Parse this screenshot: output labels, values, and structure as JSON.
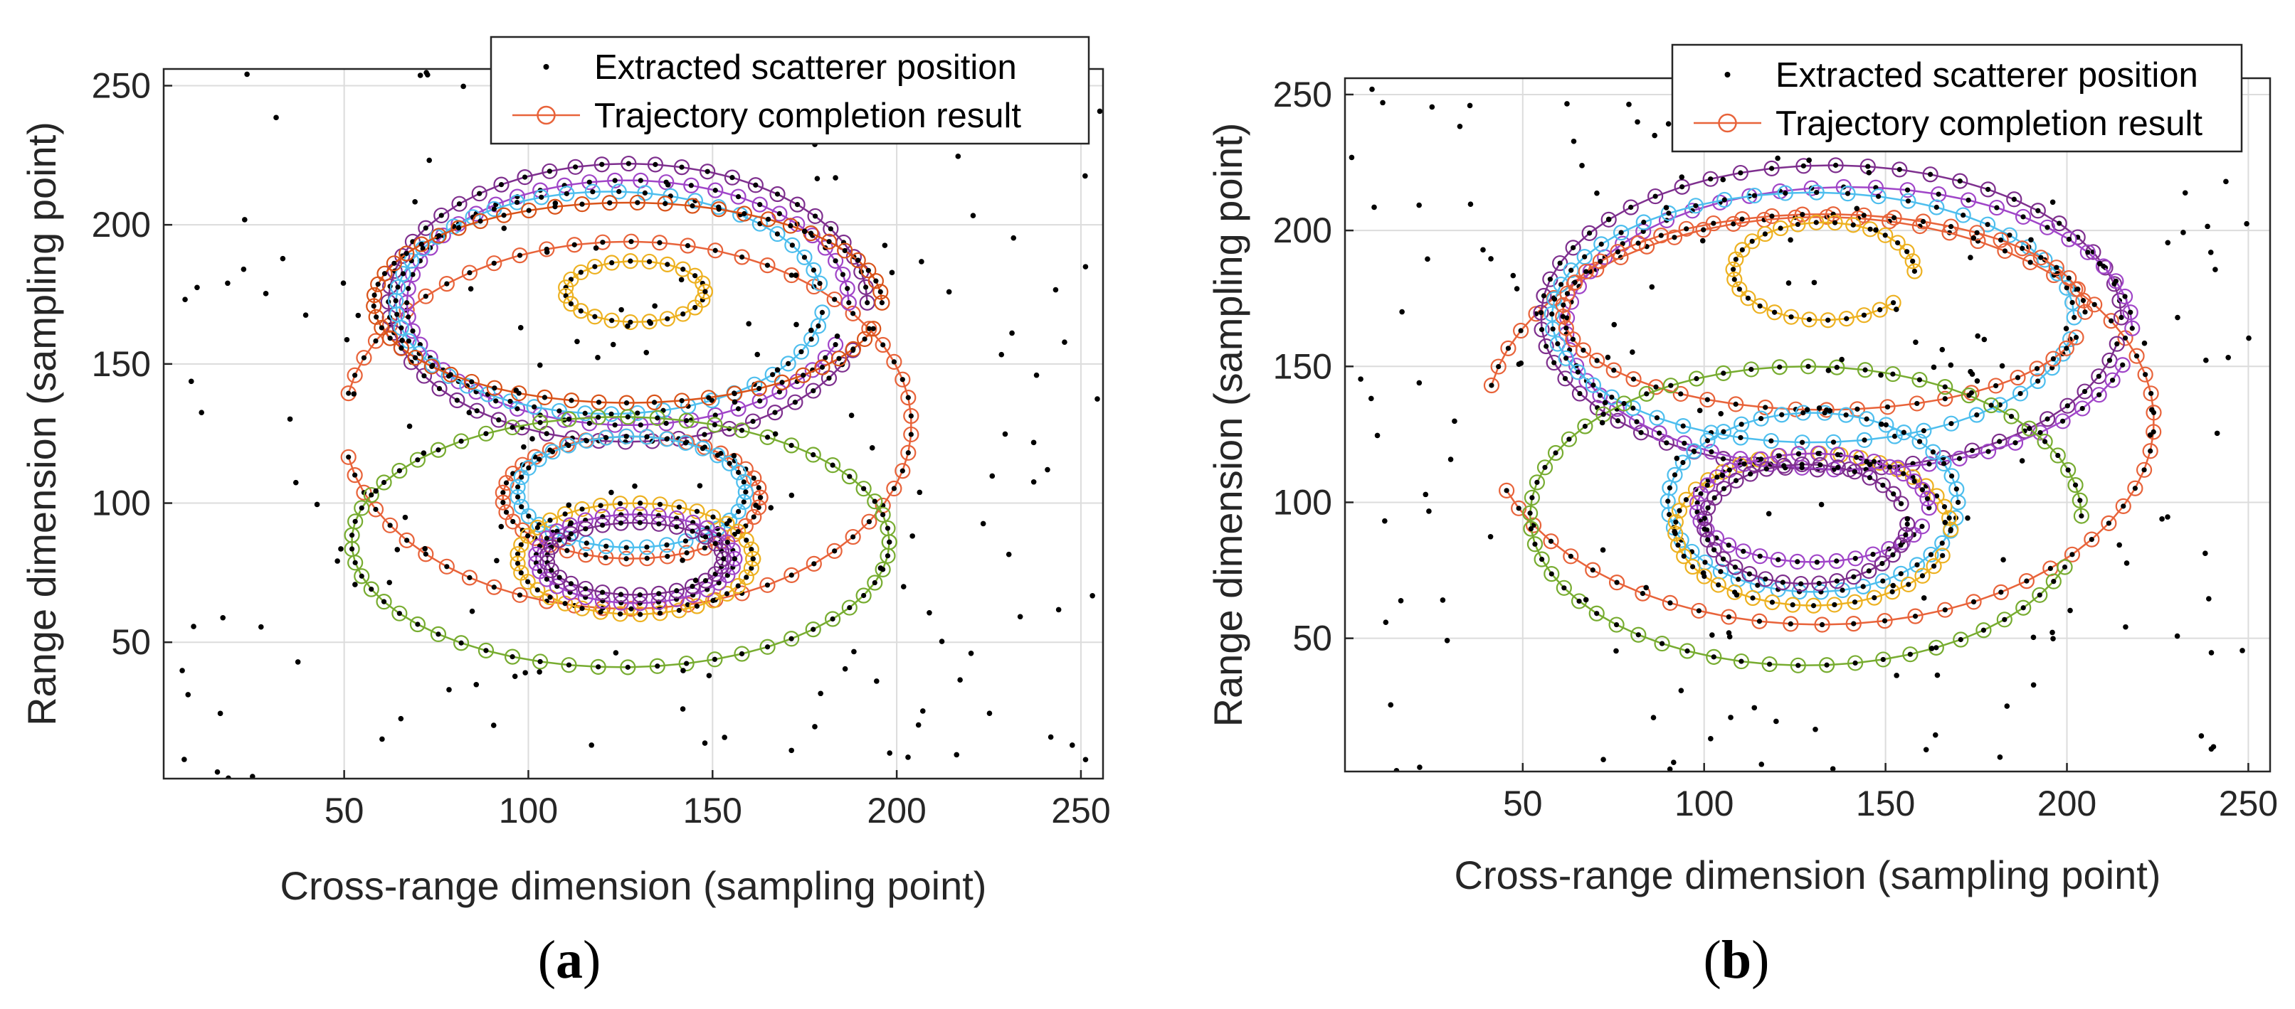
{
  "figure": {
    "panels": [
      {
        "label_open": "(",
        "label_letter": "a",
        "label_close": ")"
      },
      {
        "label_open": "(",
        "label_letter": "b",
        "label_close": ")"
      }
    ]
  },
  "chart_data": [
    {
      "type": "scatter",
      "title": "",
      "xlabel": "Cross-range dimension (sampling point)",
      "ylabel": "Range dimension (sampling point)",
      "xlim": [
        1,
        256
      ],
      "ylim": [
        1,
        256
      ],
      "xticks": [
        50,
        100,
        150,
        200,
        250
      ],
      "yticks": [
        50,
        100,
        150,
        200,
        250
      ],
      "grid": true,
      "legend": {
        "position": "top-right",
        "entries": [
          {
            "label": "Extracted scatterer position",
            "marker": "dot",
            "color": "#000000"
          },
          {
            "label": "Trajectory completion result",
            "marker": "circle-line",
            "color": "#E8633A"
          }
        ]
      },
      "series": [
        {
          "name": "Trajectory completion result",
          "color": "#E8633A",
          "center": [
            127,
            128
          ],
          "radius": [
            77,
            66
          ],
          "start_deg": 190,
          "end_deg": 530,
          "n": 60
        },
        {
          "name": "trajectory",
          "color": "#7E2F8E",
          "center": [
            127,
            172
          ],
          "radius": [
            65,
            50
          ],
          "start_deg": 0,
          "end_deg": 340,
          "n": 54
        },
        {
          "name": "trajectory",
          "color": "#A045C8",
          "center": [
            127,
            172
          ],
          "radius": [
            60,
            44
          ],
          "start_deg": 0,
          "end_deg": 340,
          "n": 52
        },
        {
          "name": "trajectory",
          "color": "#4DBEEE",
          "center": [
            122,
            172
          ],
          "radius": [
            58,
            40
          ],
          "start_deg": 10,
          "end_deg": 355,
          "n": 50
        },
        {
          "name": "trajectory",
          "color": "#D95319",
          "center": [
            127,
            172
          ],
          "radius": [
            69,
            36
          ],
          "start_deg": 0,
          "end_deg": 345,
          "n": 56
        },
        {
          "name": "trajectory",
          "color": "#77AC30",
          "center": [
            125,
            86
          ],
          "radius": [
            73,
            45
          ],
          "start_deg": 0,
          "end_deg": 360,
          "n": 58
        },
        {
          "name": "trajectory",
          "color": "#E8633A",
          "center": [
            128,
            102
          ],
          "radius": [
            35,
            22
          ],
          "start_deg": 0,
          "end_deg": 360,
          "n": 40
        },
        {
          "name": "trajectory",
          "color": "#4DBEEE",
          "center": [
            128,
            104
          ],
          "radius": [
            31,
            20
          ],
          "start_deg": 0,
          "end_deg": 360,
          "n": 36
        },
        {
          "name": "trajectory",
          "color": "#EDB120",
          "center": [
            129,
            80
          ],
          "radius": [
            32,
            20
          ],
          "start_deg": 0,
          "end_deg": 360,
          "n": 38
        },
        {
          "name": "trajectory",
          "color": "#A045C8",
          "center": [
            129,
            80
          ],
          "radius": [
            27,
            16
          ],
          "start_deg": 0,
          "end_deg": 360,
          "n": 34
        },
        {
          "name": "trajectory",
          "color": "#7E2F8E",
          "center": [
            129,
            80
          ],
          "radius": [
            24,
            13
          ],
          "start_deg": 0,
          "end_deg": 360,
          "n": 30
        },
        {
          "name": "trajectory",
          "color": "#EDB120",
          "center": [
            129,
            176
          ],
          "radius": [
            19,
            11
          ],
          "start_deg": 0,
          "end_deg": 360,
          "n": 24
        }
      ]
    },
    {
      "type": "scatter",
      "title": "",
      "xlabel": "Cross-range dimension (sampling point)",
      "ylabel": "Range dimension (sampling point)",
      "xlim": [
        1,
        256
      ],
      "ylim": [
        1,
        256
      ],
      "xticks": [
        50,
        100,
        150,
        200,
        250
      ],
      "yticks": [
        50,
        100,
        150,
        200,
        250
      ],
      "grid": true,
      "legend": {
        "position": "top-right",
        "entries": [
          {
            "label": "Extracted scatterer position",
            "marker": "dot",
            "color": "#000000"
          },
          {
            "label": "Trajectory completion result",
            "marker": "circle-line",
            "color": "#E8633A"
          }
        ]
      },
      "series": [
        {
          "name": "Trajectory completion result",
          "color": "#E8633A",
          "center": [
            132,
            130
          ],
          "radius": [
            92,
            75
          ],
          "start_deg": 200,
          "end_deg": 530,
          "n": 62
        },
        {
          "name": "trajectory",
          "color": "#7E2F8E",
          "center": [
            135,
            168
          ],
          "radius": [
            80,
            56
          ],
          "start_deg": 0,
          "end_deg": 350,
          "n": 56
        },
        {
          "name": "trajectory",
          "color": "#A045C8",
          "center": [
            140,
            164
          ],
          "radius": [
            78,
            52
          ],
          "start_deg": 0,
          "end_deg": 345,
          "n": 54
        },
        {
          "name": "trajectory",
          "color": "#4DBEEE",
          "center": [
            130,
            168
          ],
          "radius": [
            72,
            46
          ],
          "start_deg": 0,
          "end_deg": 350,
          "n": 52
        },
        {
          "name": "trajectory",
          "color": "#E8633A",
          "center": [
            133,
            170
          ],
          "radius": [
            72,
            36
          ],
          "start_deg": 0,
          "end_deg": 345,
          "n": 52
        },
        {
          "name": "trajectory",
          "color": "#77AC30",
          "center": [
            128,
            95
          ],
          "radius": [
            76,
            55
          ],
          "start_deg": 0,
          "end_deg": 340,
          "n": 58
        },
        {
          "name": "trajectory",
          "color": "#4DBEEE",
          "center": [
            130,
            100
          ],
          "radius": [
            40,
            33
          ],
          "start_deg": 0,
          "end_deg": 350,
          "n": 42
        },
        {
          "name": "trajectory",
          "color": "#EDB120",
          "center": [
            130,
            90
          ],
          "radius": [
            38,
            28
          ],
          "start_deg": 0,
          "end_deg": 340,
          "n": 40
        },
        {
          "name": "trajectory",
          "color": "#A045C8",
          "center": [
            130,
            98
          ],
          "radius": [
            32,
            20
          ],
          "start_deg": 0,
          "end_deg": 340,
          "n": 36
        },
        {
          "name": "trajectory",
          "color": "#7E2F8E",
          "center": [
            128,
            92
          ],
          "radius": [
            28,
            22
          ],
          "start_deg": 20,
          "end_deg": 360,
          "n": 34
        },
        {
          "name": "trajectory",
          "color": "#EDB120",
          "center": [
            133,
            185
          ],
          "radius": [
            25,
            18
          ],
          "start_deg": 0,
          "end_deg": 320,
          "n": 28
        }
      ]
    }
  ]
}
